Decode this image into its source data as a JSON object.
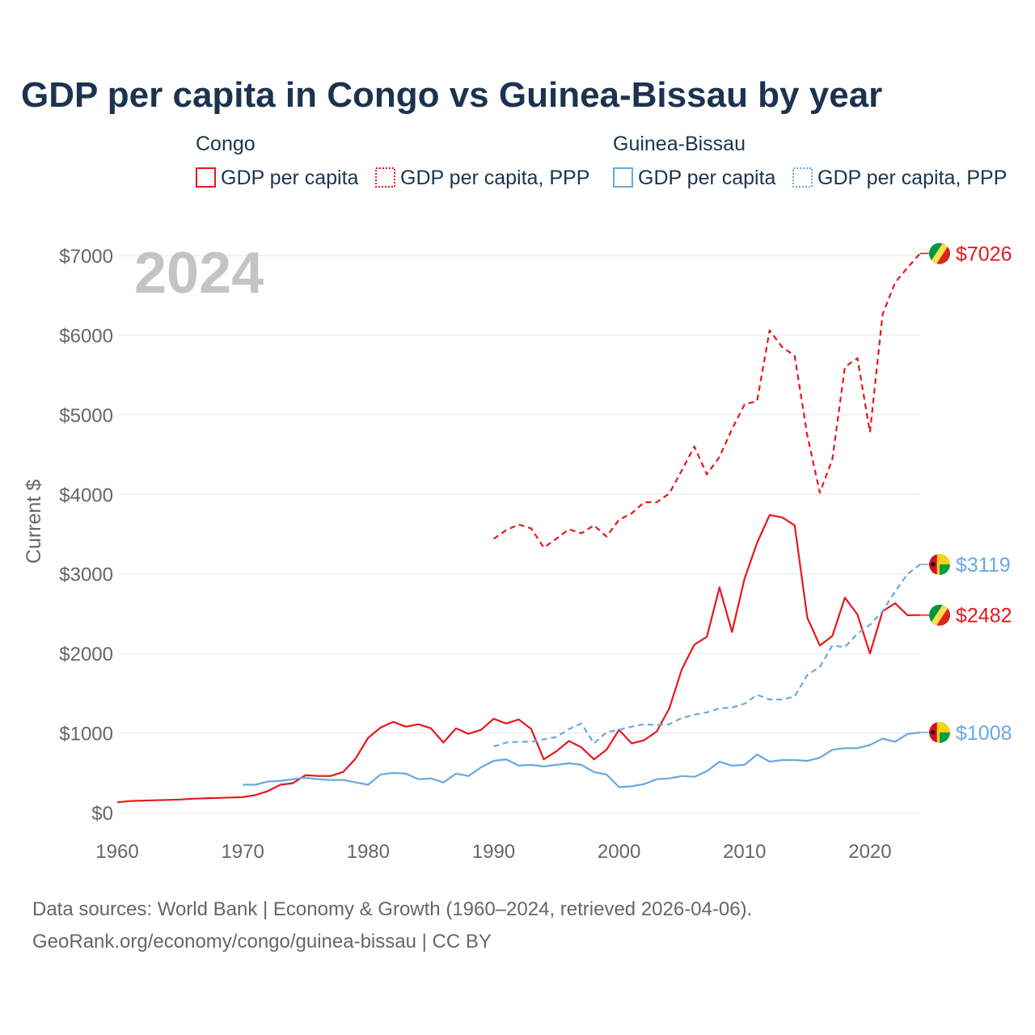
{
  "title": "GDP per capita in Congo vs Guinea-Bissau by year",
  "year_label": "2024",
  "legend": {
    "groups": [
      {
        "name": "Congo",
        "items": [
          "GDP per capita",
          "GDP per capita, PPP"
        ],
        "color": "#e8171c"
      },
      {
        "name": "Guinea-Bissau",
        "items": [
          "GDP per capita",
          "GDP per capita, PPP"
        ],
        "color": "#6aa8e0"
      }
    ]
  },
  "source": {
    "line1": "Data sources: World Bank | Economy & Growth (1960–2024, retrieved 2026-04-06).",
    "line2": "GeoRank.org/economy/congo/guinea-bissau | CC BY"
  },
  "colors": {
    "congo": "#e8171c",
    "guinea_bissau": "#6aa8e0",
    "title": "#1c3350",
    "axis_text": "#666666",
    "grid": "#e6e6e6",
    "year": "#c4c4c4"
  },
  "icons": {
    "congo_flag": "congo-flag-icon",
    "guinea_bissau_flag": "guinea-bissau-flag-icon"
  },
  "chart_data": {
    "type": "line",
    "ylabel": "Current $",
    "xlabel": "",
    "xlim": [
      1960,
      2024
    ],
    "ylim": [
      0,
      7000
    ],
    "x_ticks": [
      1960,
      1970,
      1980,
      1990,
      2000,
      2010,
      2020
    ],
    "y_ticks": [
      0,
      1000,
      2000,
      3000,
      4000,
      5000,
      6000,
      7000
    ],
    "y_tick_labels": [
      "$0",
      "$1000",
      "$2000",
      "$3000",
      "$4000",
      "$5000",
      "$6000",
      "$7000"
    ],
    "series": [
      {
        "name": "Congo GDP per capita, PPP",
        "country": "congo",
        "dashed": true,
        "end_label": "$7026",
        "x": [
          1990,
          1991,
          1992,
          1993,
          1994,
          1995,
          1996,
          1997,
          1998,
          1999,
          2000,
          2001,
          2002,
          2003,
          2004,
          2005,
          2006,
          2007,
          2008,
          2009,
          2010,
          2011,
          2012,
          2013,
          2014,
          2015,
          2016,
          2017,
          2018,
          2019,
          2020,
          2021,
          2022,
          2023,
          2024
        ],
        "y": [
          3440,
          3550,
          3620,
          3570,
          3330,
          3440,
          3560,
          3510,
          3610,
          3470,
          3680,
          3760,
          3900,
          3900,
          4010,
          4300,
          4600,
          4250,
          4470,
          4820,
          5130,
          5170,
          6060,
          5850,
          5740,
          4740,
          4020,
          4440,
          5600,
          5710,
          4780,
          6260,
          6660,
          6850,
          7026
        ]
      },
      {
        "name": "Congo GDP per capita",
        "country": "congo",
        "dashed": false,
        "end_label": "$2482",
        "x": [
          1960,
          1961,
          1962,
          1963,
          1964,
          1965,
          1966,
          1967,
          1968,
          1969,
          1970,
          1971,
          1972,
          1973,
          1974,
          1975,
          1976,
          1977,
          1978,
          1979,
          1980,
          1981,
          1982,
          1983,
          1984,
          1985,
          1986,
          1987,
          1988,
          1989,
          1990,
          1991,
          1992,
          1993,
          1994,
          1995,
          1996,
          1997,
          1998,
          1999,
          2000,
          2001,
          2002,
          2003,
          2004,
          2005,
          2006,
          2007,
          2008,
          2009,
          2010,
          2011,
          2012,
          2013,
          2014,
          2015,
          2016,
          2017,
          2018,
          2019,
          2020,
          2021,
          2022,
          2023,
          2024
        ],
        "y": [
          130,
          145,
          150,
          155,
          160,
          165,
          175,
          180,
          185,
          190,
          195,
          220,
          270,
          350,
          370,
          470,
          460,
          460,
          510,
          680,
          940,
          1070,
          1140,
          1080,
          1110,
          1060,
          880,
          1060,
          990,
          1040,
          1180,
          1120,
          1170,
          1050,
          670,
          770,
          900,
          820,
          670,
          790,
          1040,
          870,
          910,
          1020,
          1310,
          1800,
          2110,
          2210,
          2830,
          2270,
          2940,
          3390,
          3740,
          3710,
          3610,
          2450,
          2100,
          2220,
          2700,
          2490,
          2000,
          2530,
          2630,
          2480,
          2482
        ]
      },
      {
        "name": "Guinea-Bissau GDP per capita, PPP",
        "country": "guinea_bissau",
        "dashed": true,
        "end_label": "$3119",
        "x": [
          1990,
          1991,
          1992,
          1993,
          1994,
          1995,
          1996,
          1997,
          1998,
          1999,
          2000,
          2001,
          2002,
          2003,
          2004,
          2005,
          2006,
          2007,
          2008,
          2009,
          2010,
          2011,
          2012,
          2013,
          2014,
          2015,
          2016,
          2017,
          2018,
          2019,
          2020,
          2021,
          2022,
          2023,
          2024
        ],
        "y": [
          830,
          880,
          890,
          890,
          920,
          950,
          1050,
          1120,
          870,
          1010,
          1040,
          1080,
          1110,
          1100,
          1110,
          1190,
          1230,
          1260,
          1310,
          1320,
          1370,
          1480,
          1420,
          1420,
          1460,
          1730,
          1830,
          2100,
          2080,
          2250,
          2360,
          2530,
          2780,
          3000,
          3119
        ]
      },
      {
        "name": "Guinea-Bissau GDP per capita",
        "country": "guinea_bissau",
        "dashed": false,
        "end_label": "$1008",
        "x": [
          1970,
          1971,
          1972,
          1973,
          1974,
          1975,
          1976,
          1977,
          1978,
          1979,
          1980,
          1981,
          1982,
          1983,
          1984,
          1985,
          1986,
          1987,
          1988,
          1989,
          1990,
          1991,
          1992,
          1993,
          1994,
          1995,
          1996,
          1997,
          1998,
          1999,
          2000,
          2001,
          2002,
          2003,
          2004,
          2005,
          2006,
          2007,
          2008,
          2009,
          2010,
          2011,
          2012,
          2013,
          2014,
          2015,
          2016,
          2017,
          2018,
          2019,
          2020,
          2021,
          2022,
          2023,
          2024
        ],
        "y": [
          350,
          350,
          390,
          400,
          420,
          440,
          420,
          410,
          410,
          380,
          350,
          480,
          500,
          490,
          420,
          430,
          380,
          490,
          460,
          570,
          650,
          670,
          590,
          600,
          580,
          600,
          620,
          600,
          510,
          480,
          320,
          330,
          360,
          420,
          430,
          460,
          450,
          520,
          640,
          590,
          600,
          730,
          640,
          660,
          660,
          650,
          690,
          790,
          810,
          810,
          850,
          930,
          890,
          990,
          1008
        ]
      }
    ]
  }
}
